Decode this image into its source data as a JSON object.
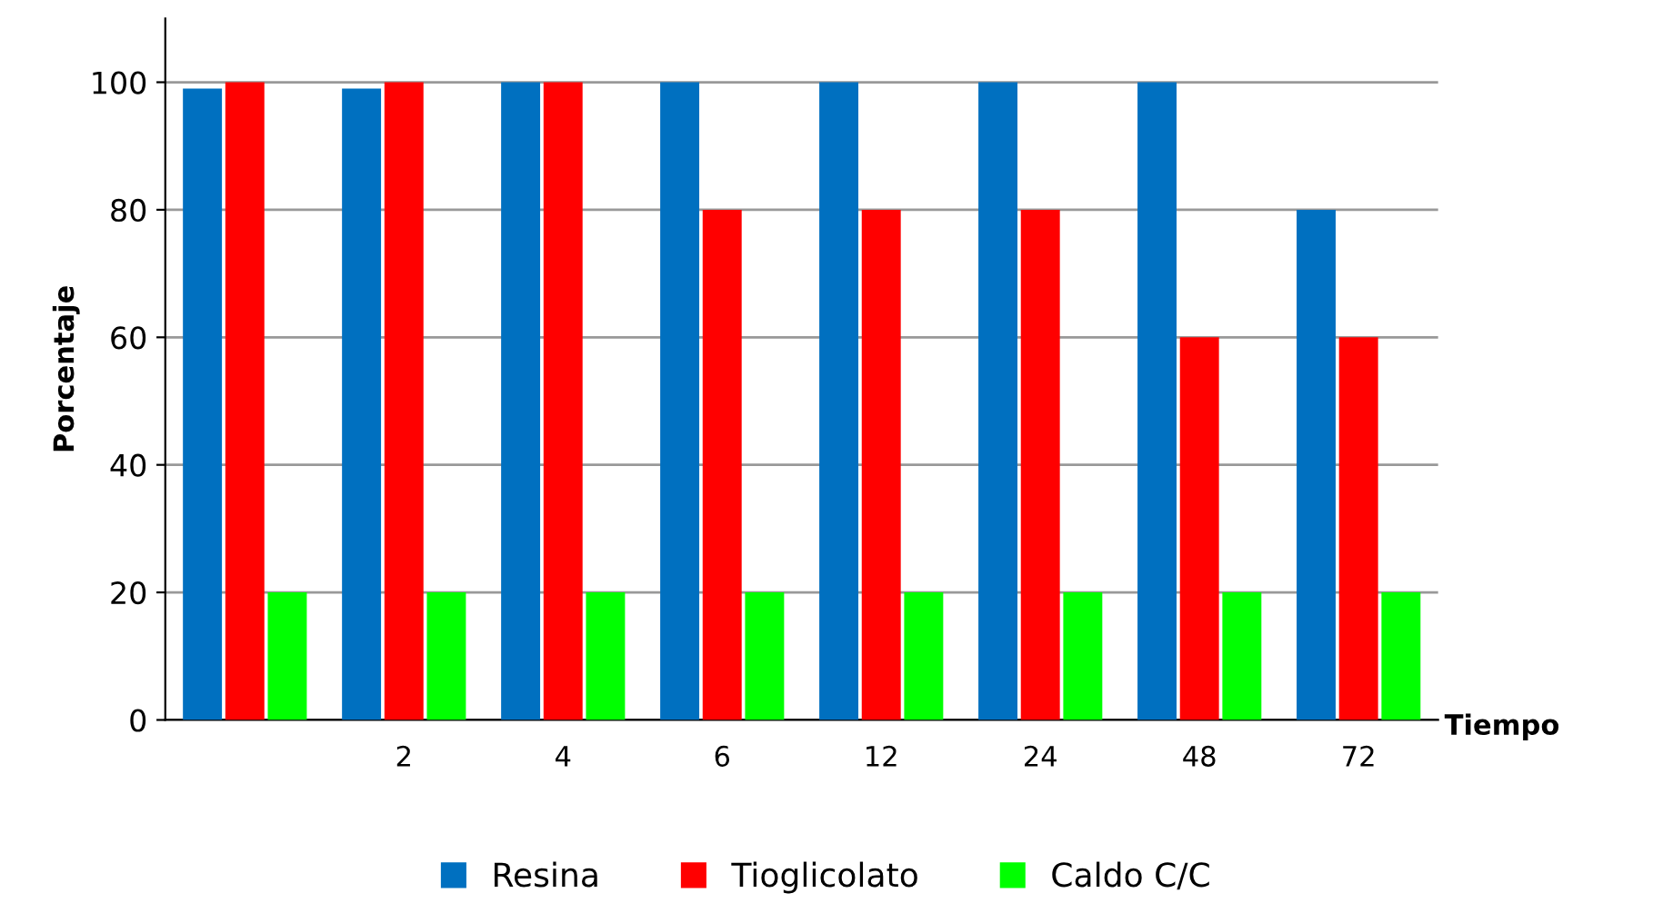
{
  "chart_data": {
    "type": "bar",
    "xlabel": "Tiempo",
    "ylabel": "Porcentaje",
    "categories": [
      null,
      "2",
      "4",
      "6",
      "12",
      "24",
      "48",
      "72"
    ],
    "series": [
      {
        "name": "Resina",
        "color": "#0070c0",
        "values": [
          99,
          99,
          100,
          100,
          100,
          100,
          100,
          80
        ]
      },
      {
        "name": "Tioglicolato",
        "color": "#ff0000",
        "values": [
          100,
          100,
          100,
          80,
          80,
          80,
          60,
          60
        ]
      },
      {
        "name": "Caldo C/C",
        "color": "#00ff00",
        "values": [
          20,
          20,
          20,
          20,
          20,
          20,
          20,
          20
        ]
      }
    ],
    "ylim": [
      0,
      110
    ],
    "yticks": [
      0,
      20,
      40,
      60,
      80,
      100
    ],
    "grid": "y",
    "legend": "bottom"
  }
}
